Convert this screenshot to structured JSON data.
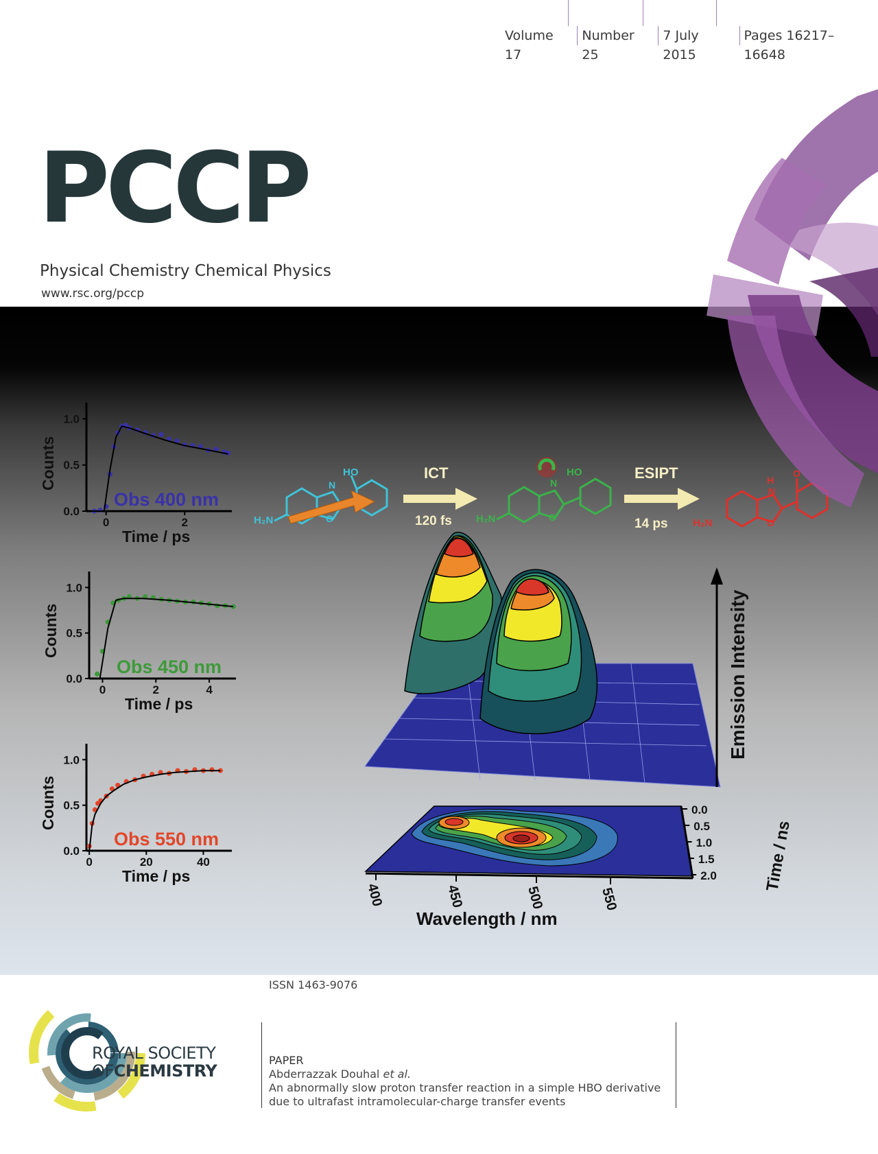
{
  "header": {
    "volume": "Volume 17",
    "number": "Number 25",
    "date": "7 July 2015",
    "pages": "Pages 16217–16648"
  },
  "journal": {
    "logo": "PCCP",
    "subtitle": "Physical Chemistry Chemical Physics",
    "url": "www.rsc.org/pccp"
  },
  "cover_art": {
    "molecules": {
      "step1_label": "ICT",
      "step1_time": "120 fs",
      "step2_label": "ESIPT",
      "step2_time": "14 ps",
      "ho": "HO",
      "h2n": "H₂N",
      "n": "N",
      "o": "O",
      "h": "H"
    },
    "surface": {
      "z_label": "Emission Intensity",
      "x_label": "Wavelength / nm",
      "x_ticks": [
        "400",
        "450",
        "500",
        "550"
      ],
      "y_label": "Time / ns",
      "y_ticks": [
        "0.0",
        "0.5",
        "1.0",
        "1.5",
        "2.0"
      ]
    },
    "colors": {
      "blue": "#3a32a8",
      "green": "#3d9a3a",
      "red": "#e2462a",
      "purple": "#8e4e9e"
    }
  },
  "chart_data": [
    {
      "type": "scatter",
      "annotation": "Obs 400 nm",
      "xlabel": "Time / ps",
      "ylabel": "Counts",
      "xlim": [
        -0.5,
        3.2
      ],
      "ylim": [
        0,
        1.1
      ],
      "x_ticks": [
        "0",
        "2"
      ],
      "y_ticks": [
        "0.0",
        "0.5",
        "1.0"
      ],
      "color": "#3a32a8",
      "x": [
        -0.3,
        -0.15,
        0.0,
        0.1,
        0.2,
        0.3,
        0.4,
        0.5,
        0.6,
        0.8,
        1.0,
        1.2,
        1.4,
        1.6,
        1.8,
        2.0,
        2.2,
        2.4,
        2.6,
        2.8,
        3.0,
        3.1
      ],
      "y": [
        0.0,
        0.01,
        0.05,
        0.4,
        0.7,
        0.85,
        0.92,
        0.93,
        0.9,
        0.88,
        0.85,
        0.82,
        0.83,
        0.78,
        0.76,
        0.72,
        0.71,
        0.7,
        0.66,
        0.67,
        0.64,
        0.63
      ],
      "fit_x": [
        -0.5,
        -0.05,
        0.1,
        0.25,
        0.4,
        0.6,
        1.0,
        1.5,
        2.0,
        2.5,
        3.1
      ],
      "fit_y": [
        0.0,
        0.0,
        0.45,
        0.8,
        0.92,
        0.9,
        0.84,
        0.77,
        0.71,
        0.67,
        0.62
      ]
    },
    {
      "type": "scatter",
      "annotation": "Obs 450 nm",
      "xlabel": "Time / ps",
      "ylabel": "Counts",
      "xlim": [
        -0.5,
        5
      ],
      "ylim": [
        0,
        1.1
      ],
      "x_ticks": [
        "0",
        "2",
        "4"
      ],
      "y_ticks": [
        "0.0",
        "0.5",
        "1.0"
      ],
      "color": "#3d9a3a",
      "x": [
        -0.2,
        0.0,
        0.2,
        0.4,
        0.6,
        0.8,
        1.0,
        1.3,
        1.6,
        1.9,
        2.2,
        2.5,
        2.8,
        3.1,
        3.4,
        3.7,
        4.0,
        4.3,
        4.6,
        4.9
      ],
      "y": [
        0.05,
        0.3,
        0.62,
        0.83,
        0.86,
        0.88,
        0.9,
        0.88,
        0.9,
        0.89,
        0.87,
        0.86,
        0.85,
        0.84,
        0.84,
        0.83,
        0.82,
        0.8,
        0.8,
        0.79
      ],
      "fit_x": [
        -0.5,
        -0.1,
        0.2,
        0.5,
        0.8,
        1.5,
        2.5,
        3.5,
        4.9
      ],
      "fit_y": [
        0.0,
        0.0,
        0.55,
        0.86,
        0.88,
        0.88,
        0.86,
        0.83,
        0.79
      ]
    },
    {
      "type": "scatter",
      "annotation": "Obs 550 nm",
      "xlabel": "Time / ps",
      "ylabel": "Counts",
      "xlim": [
        -1,
        50
      ],
      "ylim": [
        0,
        1.1
      ],
      "x_ticks": [
        "0",
        "20",
        "40"
      ],
      "y_ticks": [
        "0.0",
        "0.5",
        "1.0"
      ],
      "color": "#e2462a",
      "x": [
        0,
        1,
        2,
        3,
        4,
        6,
        8,
        10,
        13,
        16,
        19,
        22,
        25,
        28,
        31,
        34,
        37,
        40,
        43,
        46
      ],
      "y": [
        0.05,
        0.3,
        0.45,
        0.52,
        0.55,
        0.6,
        0.68,
        0.72,
        0.76,
        0.78,
        0.82,
        0.84,
        0.86,
        0.85,
        0.88,
        0.87,
        0.89,
        0.88,
        0.89,
        0.88
      ],
      "fit_x": [
        0,
        1,
        2,
        4,
        6,
        9,
        12,
        16,
        20,
        25,
        30,
        35,
        40,
        46
      ],
      "fit_y": [
        0.0,
        0.28,
        0.4,
        0.52,
        0.6,
        0.67,
        0.73,
        0.78,
        0.81,
        0.84,
        0.86,
        0.87,
        0.88,
        0.88
      ]
    }
  ],
  "footer": {
    "issn": "ISSN 1463-9076",
    "publisher_line1": "ROYAL SOCIETY",
    "publisher_of": "OF",
    "publisher_line2": "CHEMISTRY",
    "paper_type": "PAPER",
    "author": "Abderrazzak Douhal",
    "author_suffix": "et al.",
    "title_line1": "An abnormally slow proton transfer reaction in a simple HBO derivative",
    "title_line2": "due to ultrafast intramolecular-charge transfer events"
  }
}
